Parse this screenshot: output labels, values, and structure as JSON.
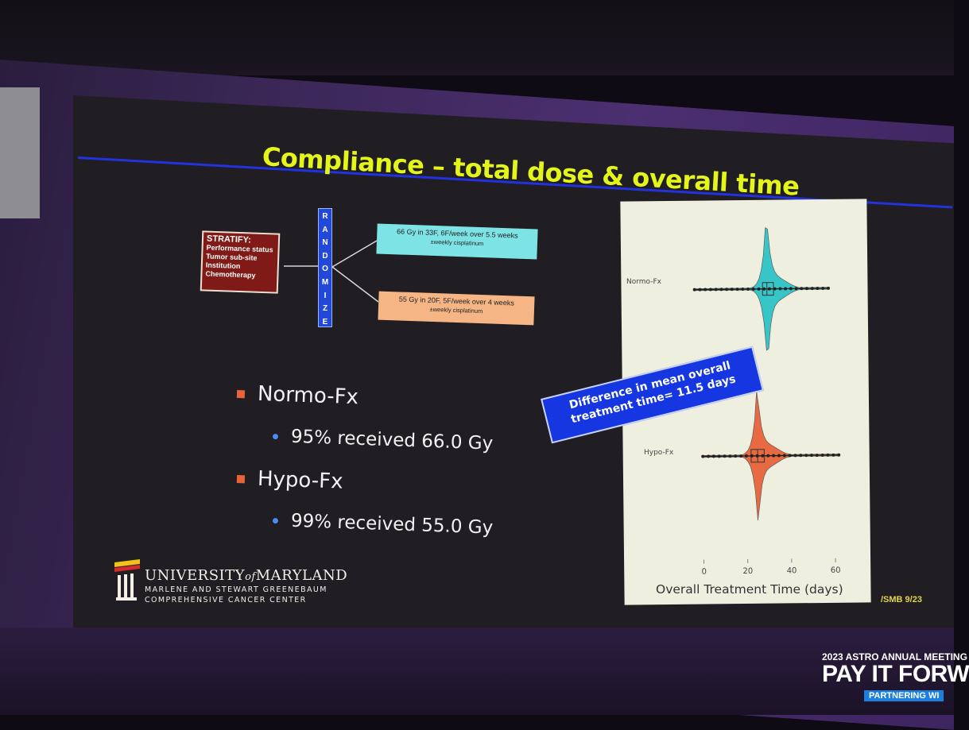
{
  "slide": {
    "title": "Compliance – total dose & overall time",
    "schema": {
      "stratify_heading": "STRATIFY:",
      "stratify_items": [
        "Performance status",
        "Tumor sub-site",
        "Institution",
        "Chemotherapy"
      ],
      "randomize": "RANDOMIZE",
      "arm1_line1": "66 Gy in 33F, 6F/week over 5.5 weeks",
      "arm1_line2": "±weekly cisplatinum",
      "arm2_line1": "55 Gy in 20F, 5F/week over 4 weeks",
      "arm2_line2": "±weekly cisplatinum"
    },
    "bullets": [
      {
        "label": "Normo-Fx",
        "detail": "95% received 66.0 Gy",
        "color": "#e8633a"
      },
      {
        "label": "Hypo-Fx",
        "detail": "99% received 55.0 Gy",
        "color": "#e8633a"
      }
    ],
    "callout": "Difference in mean overall treatment time= 11.5 days",
    "logo": {
      "line1_a": "UNIVERSITY",
      "line1_b": "of",
      "line1_c": "MARYLAND",
      "line2": "MARLENE AND STEWART GREENEBAUM",
      "line3": "COMPREHENSIVE CANCER CENTER"
    },
    "slide_number": "/SMB 9/23"
  },
  "chart_data": {
    "type": "violin",
    "xlabel": "Overall Treatment Time (days)",
    "xticks": [
      0,
      20,
      40,
      60
    ],
    "xlim": [
      -2,
      64
    ],
    "series": [
      {
        "name": "Normo-Fx",
        "color": "#2ec4c6",
        "min": -3,
        "q1": 28,
        "median": 30,
        "q3": 33,
        "max": 58
      },
      {
        "name": "Hypo-Fx",
        "color": "#e8633a",
        "min": 0,
        "q1": 22,
        "median": 25,
        "q3": 28,
        "max": 62
      }
    ]
  },
  "conference": {
    "line1": "2023 ASTRO ANNUAL MEETING",
    "line2": "PAY IT FORW",
    "line3": "PARTNERING WI"
  },
  "colors": {
    "title": "#e4f51a",
    "slide_bg": "#201d23",
    "rule": "#2233dd",
    "callout": "#1536e0"
  }
}
